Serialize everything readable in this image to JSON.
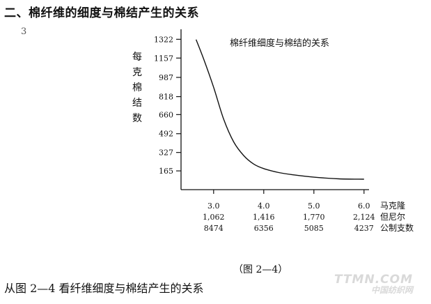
{
  "heading": "二、棉纤维的细度与棉结产生的关系",
  "speck": "3",
  "chart_data": {
    "type": "line",
    "title": "棉纤维细度与棉结的关系",
    "ylabel_chars": [
      "每",
      "克",
      "棉",
      "结",
      "数"
    ],
    "yticks": [
      {
        "value": 165,
        "label": "165"
      },
      {
        "value": 327,
        "label": "327"
      },
      {
        "value": 492,
        "label": "492"
      },
      {
        "value": 660,
        "label": "660"
      },
      {
        "value": 818,
        "label": "818"
      },
      {
        "value": 987,
        "label": "987"
      },
      {
        "value": 1157,
        "label": "1157"
      },
      {
        "value": 1322,
        "label": "1322"
      }
    ],
    "ylim": [
      0,
      1410
    ],
    "xlim": [
      2.35,
      6.1
    ],
    "x_label_ticks": [
      {
        "value": 3.0,
        "lines": [
          "3.0",
          "1,062",
          "8474"
        ]
      },
      {
        "value": 4.0,
        "lines": [
          "4.0",
          "1,416",
          "6356"
        ]
      },
      {
        "value": 5.0,
        "lines": [
          "5.0",
          "1,770",
          "5085"
        ]
      },
      {
        "value": 6.0,
        "lines": [
          "6.0",
          "2,124",
          "4237"
        ]
      }
    ],
    "x_axis_names": [
      "马克隆",
      "但尼尔",
      "公制支数"
    ],
    "series": [
      {
        "x": [
          2.65,
          2.8,
          3.0,
          3.2,
          3.4,
          3.6,
          3.8,
          4.0,
          4.3,
          4.6,
          5.0,
          5.5,
          6.0
        ],
        "y": [
          1320,
          1150,
          900,
          620,
          420,
          300,
          225,
          185,
          150,
          130,
          110,
          95,
          92
        ]
      }
    ]
  },
  "caption": "（图 2—4）",
  "footer": "从图 2—4 看纤维细度与棉结产生的关系",
  "watermark": {
    "line1": "TTMN.COM",
    "line2": "中国纺织网"
  },
  "colors": {
    "ink": "#111111",
    "watermark": "#d9d9d9"
  }
}
